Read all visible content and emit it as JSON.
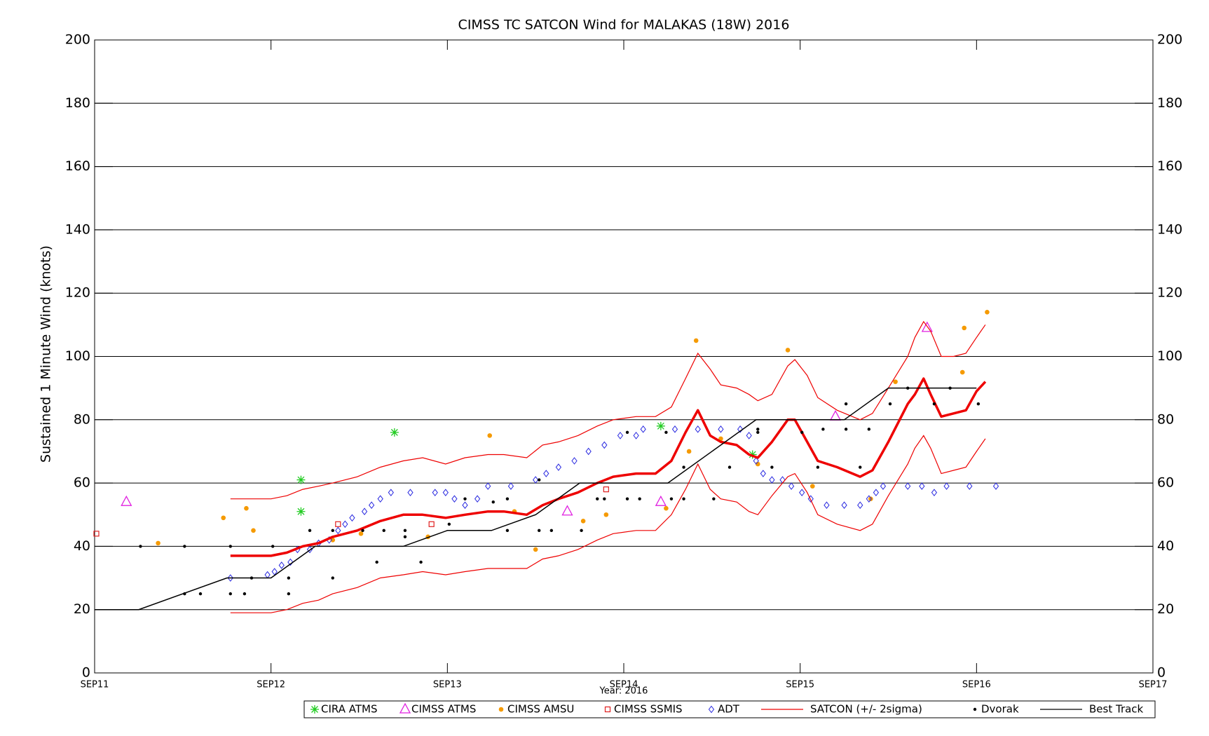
{
  "chart_data": {
    "type": "line",
    "title": "CIMSS TC SATCON Wind for MALAKAS (18W) 2016",
    "xlabel": "Year: 2016",
    "ylabel": "Sustained 1 Minute Wind (knots)",
    "xlim": [
      11,
      17
    ],
    "xticks": [
      {
        "value": 11,
        "label": "SEP11"
      },
      {
        "value": 12,
        "label": "SEP12"
      },
      {
        "value": 13,
        "label": "SEP13"
      },
      {
        "value": 14,
        "label": "SEP14"
      },
      {
        "value": 15,
        "label": "SEP15"
      },
      {
        "value": 16,
        "label": "SEP16"
      },
      {
        "value": 17,
        "label": "SEP17"
      }
    ],
    "ylim": [
      0,
      200
    ],
    "yticks": [
      0,
      20,
      40,
      60,
      80,
      100,
      120,
      140,
      160,
      180,
      200
    ],
    "grid": true,
    "series": [
      {
        "name": "CIRA ATMS",
        "type": "scatter",
        "marker": "asterisk",
        "color": "#22cc22",
        "x": [
          12.17,
          12.17,
          12.7,
          14.21,
          14.73
        ],
        "values": [
          61,
          51,
          76,
          78,
          69
        ]
      },
      {
        "name": "CIMSS ATMS",
        "type": "scatter",
        "marker": "triangle",
        "color": "#e020e0",
        "x": [
          11.18,
          13.68,
          14.21,
          15.2,
          15.72
        ],
        "values": [
          54,
          51,
          54,
          81,
          109
        ]
      },
      {
        "name": "CIMSS AMSU",
        "type": "scatter",
        "marker": "circle",
        "color": "#f59a00",
        "x": [
          11.36,
          11.73,
          11.86,
          11.9,
          12.35,
          12.51,
          12.89,
          13.24,
          13.38,
          13.5,
          13.77,
          13.9,
          14.24,
          14.37,
          14.41,
          14.55,
          14.76,
          14.93,
          15.07,
          15.4,
          15.54,
          15.92,
          15.93,
          16.06
        ],
        "values": [
          41,
          49,
          52,
          45,
          42,
          44,
          43,
          75,
          51,
          39,
          48,
          50,
          52,
          70,
          105,
          74,
          66,
          102,
          59,
          55,
          92,
          95,
          109,
          114
        ]
      },
      {
        "name": "CIMSS SSMIS",
        "type": "scatter",
        "marker": "square",
        "color": "#e02020",
        "x": [
          11.01,
          12.38,
          12.91,
          13.9
        ],
        "values": [
          44,
          47,
          47,
          58
        ]
      },
      {
        "name": "ADT",
        "type": "scatter",
        "marker": "diamond",
        "color": "#2828e0",
        "x": [
          11.77,
          11.98,
          12.02,
          12.06,
          12.11,
          12.15,
          12.22,
          12.27,
          12.33,
          12.38,
          12.42,
          12.46,
          12.53,
          12.57,
          12.62,
          12.68,
          12.79,
          12.93,
          12.99,
          13.04,
          13.1,
          13.17,
          13.23,
          13.36,
          13.5,
          13.56,
          13.63,
          13.72,
          13.8,
          13.89,
          13.98,
          14.07,
          14.11,
          14.29,
          14.42,
          14.55,
          14.66,
          14.71,
          14.75,
          14.79,
          14.84,
          14.9,
          14.95,
          15.01,
          15.06,
          15.15,
          15.25,
          15.34,
          15.39,
          15.43,
          15.47,
          15.61,
          15.69,
          15.76,
          15.83,
          15.96,
          16.11
        ],
        "values": [
          30,
          31,
          32,
          34,
          35,
          39,
          39,
          41,
          42,
          45,
          47,
          49,
          51,
          53,
          55,
          57,
          57,
          57,
          57,
          55,
          53,
          55,
          59,
          59,
          61,
          63,
          65,
          67,
          70,
          72,
          75,
          75,
          77,
          77,
          77,
          77,
          77,
          75,
          67,
          63,
          61,
          61,
          59,
          57,
          55,
          53,
          53,
          53,
          55,
          57,
          59,
          59,
          59,
          57,
          59,
          59,
          59
        ]
      },
      {
        "name": "SATCON (+/- 2sigma)",
        "type": "band-line",
        "color": "#ee0000",
        "x": [
          11.77,
          12.0,
          12.09,
          12.18,
          12.27,
          12.35,
          12.49,
          12.62,
          12.75,
          12.86,
          12.99,
          13.1,
          13.23,
          13.32,
          13.45,
          13.54,
          13.63,
          13.74,
          13.85,
          13.94,
          14.07,
          14.18,
          14.27,
          14.35,
          14.42,
          14.49,
          14.55,
          14.64,
          14.71,
          14.76,
          14.84,
          14.93,
          14.97,
          15.04,
          15.1,
          15.21,
          15.34,
          15.41,
          15.5,
          15.61,
          15.65,
          15.7,
          15.74,
          15.8,
          15.87,
          15.94,
          16.0,
          16.05
        ],
        "values": [
          37,
          37,
          38,
          40,
          41,
          43,
          45,
          48,
          50,
          50,
          49,
          50,
          51,
          51,
          50,
          53,
          55,
          57,
          60,
          62,
          63,
          63,
          67,
          76,
          83,
          75,
          73,
          72,
          69,
          68,
          73,
          80,
          80,
          73,
          67,
          65,
          62,
          64,
          73,
          85,
          88,
          93,
          88,
          81,
          82,
          83,
          89,
          92
        ],
        "upper": [
          55,
          55,
          56,
          58,
          59,
          60,
          62,
          65,
          67,
          68,
          66,
          68,
          69,
          69,
          68,
          72,
          73,
          75,
          78,
          80,
          81,
          81,
          84,
          93,
          101,
          96,
          91,
          90,
          88,
          86,
          88,
          97,
          99,
          94,
          87,
          83,
          80,
          82,
          90,
          100,
          106,
          111,
          108,
          100,
          100,
          101,
          106,
          110
        ],
        "lower": [
          19,
          19,
          20,
          22,
          23,
          25,
          27,
          30,
          31,
          32,
          31,
          32,
          33,
          33,
          33,
          36,
          37,
          39,
          42,
          44,
          45,
          45,
          50,
          58,
          66,
          58,
          55,
          54,
          51,
          50,
          56,
          62,
          63,
          57,
          50,
          47,
          45,
          47,
          56,
          66,
          71,
          75,
          71,
          63,
          64,
          65,
          70,
          74
        ]
      },
      {
        "name": "Dvorak",
        "type": "scatter",
        "marker": "dot",
        "color": "#000000",
        "x": [
          11.26,
          11.51,
          11.51,
          11.6,
          11.77,
          11.77,
          11.85,
          11.89,
          12.01,
          12.1,
          12.1,
          12.22,
          12.35,
          12.35,
          12.52,
          12.6,
          12.64,
          12.76,
          12.76,
          12.85,
          13.01,
          13.1,
          13.26,
          13.34,
          13.34,
          13.52,
          13.52,
          13.59,
          13.76,
          13.85,
          13.89,
          14.02,
          14.02,
          14.09,
          14.24,
          14.27,
          14.34,
          14.34,
          14.51,
          14.6,
          14.76,
          14.76,
          14.84,
          15.01,
          15.1,
          15.13,
          15.26,
          15.26,
          15.34,
          15.39,
          15.51,
          15.61,
          15.76,
          15.85,
          16.01
        ],
        "values": [
          40,
          40,
          25,
          25,
          40,
          25,
          25,
          30,
          40,
          30,
          25,
          45,
          30,
          45,
          45,
          35,
          45,
          45,
          43,
          35,
          47,
          55,
          54,
          55,
          45,
          61,
          45,
          45,
          45,
          55,
          55,
          76,
          55,
          55,
          76,
          55,
          55,
          65,
          55,
          65,
          76,
          77,
          65,
          76,
          65,
          77,
          85,
          77,
          65,
          77,
          85,
          90,
          85,
          90,
          85
        ]
      },
      {
        "name": "Best Track",
        "type": "line",
        "color": "#000000",
        "x": [
          11.0,
          11.25,
          11.75,
          12.0,
          12.25,
          12.75,
          13.0,
          13.25,
          13.5,
          13.75,
          14.25,
          14.75,
          15.25,
          15.5,
          16.0
        ],
        "values": [
          20,
          20,
          30,
          30,
          40,
          40,
          45,
          45,
          50,
          60,
          60,
          80,
          80,
          90,
          90
        ]
      }
    ]
  }
}
